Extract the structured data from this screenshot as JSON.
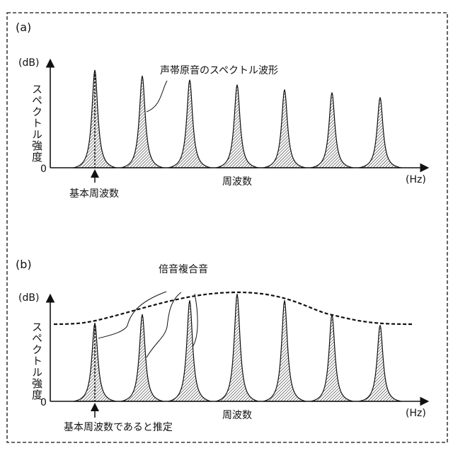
{
  "panel_a": {
    "label": "(a)",
    "y_unit": "(dB)",
    "y_label": "スペクトル強度",
    "origin": "0",
    "x_label": "周波数",
    "x_unit": "(Hz)",
    "callout": "声帯原音のスペクトル波形",
    "arrow_label": "基本周波数",
    "peak_levels": [
      1.0,
      0.94,
      0.9,
      0.85,
      0.8,
      0.77,
      0.72
    ]
  },
  "panel_b": {
    "label": "(b)",
    "y_unit": "(dB)",
    "y_label": "スペクトル強度",
    "origin": "0",
    "x_label": "周波数",
    "x_unit": "(Hz)",
    "callout": "倍音複合音",
    "arrow_label": "基本周波数であると推定",
    "peak_levels": [
      0.73,
      0.81,
      0.94,
      1.0,
      0.94,
      0.81,
      0.71
    ]
  },
  "colors": {
    "ink": "#111111",
    "background": "#ffffff"
  }
}
